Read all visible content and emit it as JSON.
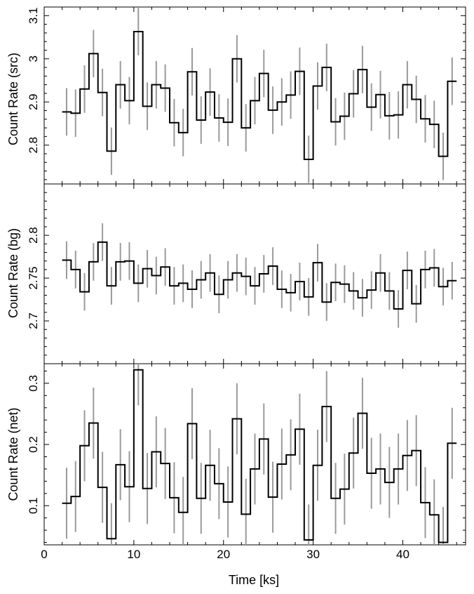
{
  "chart_data": [
    {
      "type": "line",
      "ylabel": "Count Rate (src)",
      "ylim": [
        2.71,
        3.12
      ],
      "yticks": [
        "2.8",
        "2.9",
        "3",
        "3.1"
      ],
      "x": [
        2.5,
        3.5,
        4.5,
        5.5,
        6.5,
        7.5,
        8.5,
        9.5,
        10.5,
        11.5,
        12.5,
        13.5,
        14.5,
        15.5,
        16.5,
        17.5,
        18.5,
        19.5,
        20.5,
        21.5,
        22.5,
        23.5,
        24.5,
        25.5,
        26.5,
        27.5,
        28.5,
        29.5,
        30.5,
        31.5,
        32.5,
        33.5,
        34.5,
        35.5,
        36.5,
        37.5,
        38.5,
        39.5,
        40.5,
        41.5,
        42.5,
        43.5,
        44.5,
        45.5
      ],
      "y": [
        2.877,
        2.874,
        2.93,
        3.012,
        2.922,
        2.786,
        2.94,
        2.903,
        3.063,
        2.89,
        2.94,
        2.932,
        2.852,
        2.829,
        2.97,
        2.858,
        2.923,
        2.863,
        2.853,
        3.0,
        2.84,
        2.903,
        2.966,
        2.881,
        2.9,
        2.916,
        2.971,
        2.767,
        2.937,
        2.98,
        2.854,
        2.867,
        2.919,
        2.975,
        2.888,
        2.917,
        2.868,
        2.87,
        2.94,
        2.906,
        2.861,
        2.848,
        2.774,
        2.948
      ],
      "yerr": 0.055,
      "x_edges": [
        2.0,
        46.0
      ]
    },
    {
      "type": "line",
      "ylabel": "Count Rate (bg)",
      "ylim": [
        2.65,
        2.86
      ],
      "yticks": [
        "2.7",
        "2.75",
        "2.8"
      ],
      "x": [
        2.5,
        3.5,
        4.5,
        5.5,
        6.5,
        7.5,
        8.5,
        9.5,
        10.5,
        11.5,
        12.5,
        13.5,
        14.5,
        15.5,
        16.5,
        17.5,
        18.5,
        19.5,
        20.5,
        21.5,
        22.5,
        23.5,
        24.5,
        25.5,
        26.5,
        27.5,
        28.5,
        29.5,
        30.5,
        31.5,
        32.5,
        33.5,
        34.5,
        35.5,
        36.5,
        37.5,
        38.5,
        39.5,
        40.5,
        41.5,
        42.5,
        43.5,
        44.5,
        45.5
      ],
      "y": [
        2.771,
        2.76,
        2.734,
        2.769,
        2.792,
        2.741,
        2.769,
        2.77,
        2.744,
        2.761,
        2.753,
        2.763,
        2.741,
        2.744,
        2.737,
        2.748,
        2.756,
        2.731,
        2.748,
        2.756,
        2.752,
        2.741,
        2.755,
        2.764,
        2.737,
        2.733,
        2.746,
        2.728,
        2.768,
        2.722,
        2.745,
        2.743,
        2.735,
        2.727,
        2.736,
        2.756,
        2.735,
        2.714,
        2.759,
        2.72,
        2.76,
        2.762,
        2.74,
        2.747
      ],
      "yerr": 0.022,
      "x_edges": [
        2.0,
        46.0
      ]
    },
    {
      "type": "line",
      "xlabel": "Time [ks]",
      "ylabel": "Count Rate (net)",
      "xlim": [
        0,
        47
      ],
      "xticks": [
        "0",
        "10",
        "20",
        "30",
        "40"
      ],
      "ylim": [
        0.036,
        0.332
      ],
      "yticks": [
        "0.1",
        "0.2",
        "0.3"
      ],
      "x": [
        2.5,
        3.5,
        4.5,
        5.5,
        6.5,
        7.5,
        8.5,
        9.5,
        10.5,
        11.5,
        12.5,
        13.5,
        14.5,
        15.5,
        16.5,
        17.5,
        18.5,
        19.5,
        20.5,
        21.5,
        22.5,
        23.5,
        24.5,
        25.5,
        26.5,
        27.5,
        28.5,
        29.5,
        30.5,
        31.5,
        32.5,
        33.5,
        34.5,
        35.5,
        36.5,
        37.5,
        38.5,
        39.5,
        40.5,
        41.5,
        42.5,
        43.5,
        44.5,
        45.5
      ],
      "y": [
        0.104,
        0.115,
        0.198,
        0.235,
        0.13,
        0.046,
        0.167,
        0.131,
        0.322,
        0.128,
        0.188,
        0.169,
        0.113,
        0.089,
        0.234,
        0.112,
        0.166,
        0.136,
        0.106,
        0.242,
        0.086,
        0.16,
        0.209,
        0.114,
        0.168,
        0.183,
        0.225,
        0.044,
        0.166,
        0.262,
        0.112,
        0.127,
        0.186,
        0.251,
        0.153,
        0.16,
        0.138,
        0.16,
        0.182,
        0.19,
        0.105,
        0.085,
        0.04,
        0.202
      ],
      "yerr": 0.058,
      "x_edges": [
        2.0,
        46.0
      ]
    }
  ]
}
